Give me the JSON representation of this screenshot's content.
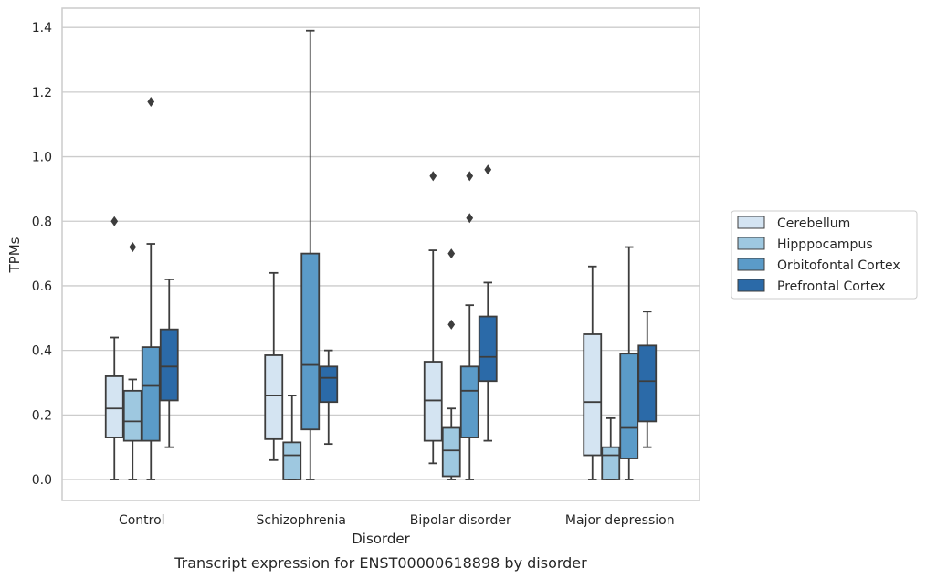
{
  "chart_data": {
    "type": "box",
    "caption": "Transcript expression for ENST00000618898 by disorder",
    "xlabel": "Disorder",
    "ylabel": "TPMs",
    "ylim": [
      -0.065,
      1.46
    ],
    "yticks": [
      "0.0",
      "0.2",
      "0.4",
      "0.6",
      "0.8",
      "1.0",
      "1.2",
      "1.4"
    ],
    "ytick_values": [
      0.0,
      0.2,
      0.4,
      0.6,
      0.8,
      1.0,
      1.2,
      1.4
    ],
    "grid": "horizontal",
    "legend_position": "right",
    "categories": [
      "Control",
      "Schizophrenia",
      "Bipolar disorder",
      "Major depression"
    ],
    "series": [
      {
        "name": "Cerebellum",
        "color": "#d4e4f2",
        "boxes": [
          {
            "whislo": 0.0,
            "q1": 0.13,
            "med": 0.22,
            "q3": 0.32,
            "whishi": 0.44,
            "fliers": [
              0.8
            ]
          },
          {
            "whislo": 0.06,
            "q1": 0.125,
            "med": 0.26,
            "q3": 0.385,
            "whishi": 0.64,
            "fliers": []
          },
          {
            "whislo": 0.05,
            "q1": 0.12,
            "med": 0.245,
            "q3": 0.365,
            "whishi": 0.71,
            "fliers": [
              0.94
            ]
          },
          {
            "whislo": 0.0,
            "q1": 0.075,
            "med": 0.24,
            "q3": 0.45,
            "whishi": 0.66,
            "fliers": []
          }
        ]
      },
      {
        "name": "Hipppocampus",
        "color": "#9ec8e0",
        "boxes": [
          {
            "whislo": 0.0,
            "q1": 0.12,
            "med": 0.18,
            "q3": 0.275,
            "whishi": 0.31,
            "fliers": [
              0.72
            ]
          },
          {
            "whislo": 0.0,
            "q1": 0.0,
            "med": 0.075,
            "q3": 0.115,
            "whishi": 0.26,
            "fliers": []
          },
          {
            "whislo": 0.0,
            "q1": 0.01,
            "med": 0.09,
            "q3": 0.16,
            "whishi": 0.22,
            "fliers": [
              0.48,
              0.7
            ]
          },
          {
            "whislo": 0.0,
            "q1": 0.0,
            "med": 0.075,
            "q3": 0.1,
            "whishi": 0.19,
            "fliers": []
          }
        ]
      },
      {
        "name": "Orbitofontal Cortex",
        "color": "#5b9bc8",
        "boxes": [
          {
            "whislo": 0.0,
            "q1": 0.12,
            "med": 0.29,
            "q3": 0.41,
            "whishi": 0.73,
            "fliers": [
              1.17
            ]
          },
          {
            "whislo": 0.0,
            "q1": 0.155,
            "med": 0.355,
            "q3": 0.7,
            "whishi": 1.39,
            "fliers": []
          },
          {
            "whislo": 0.0,
            "q1": 0.13,
            "med": 0.275,
            "q3": 0.35,
            "whishi": 0.54,
            "fliers": [
              0.81,
              0.94
            ]
          },
          {
            "whislo": 0.0,
            "q1": 0.065,
            "med": 0.16,
            "q3": 0.39,
            "whishi": 0.72,
            "fliers": []
          }
        ]
      },
      {
        "name": "Prefrontal Cortex",
        "color": "#2b6aa8",
        "boxes": [
          {
            "whislo": 0.1,
            "q1": 0.245,
            "med": 0.35,
            "q3": 0.465,
            "whishi": 0.62,
            "fliers": []
          },
          {
            "whislo": 0.11,
            "q1": 0.24,
            "med": 0.315,
            "q3": 0.35,
            "whishi": 0.4,
            "fliers": []
          },
          {
            "whislo": 0.12,
            "q1": 0.305,
            "med": 0.38,
            "q3": 0.505,
            "whishi": 0.61,
            "fliers": [
              0.96
            ]
          },
          {
            "whislo": 0.1,
            "q1": 0.18,
            "med": 0.305,
            "q3": 0.415,
            "whishi": 0.52,
            "fliers": []
          }
        ]
      }
    ]
  }
}
